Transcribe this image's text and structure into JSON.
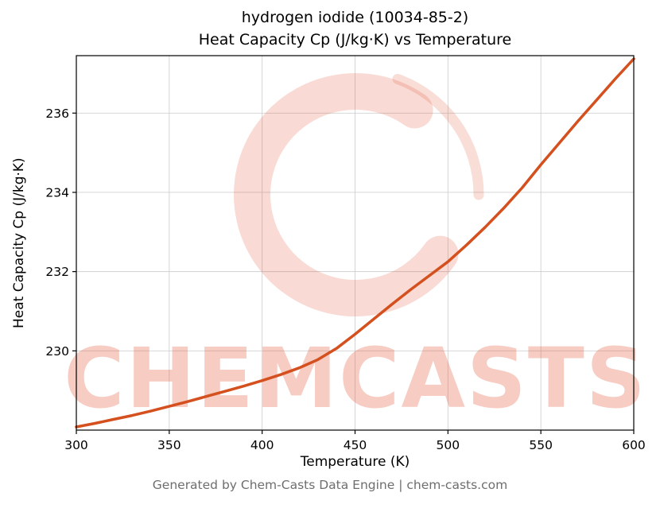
{
  "page": {
    "footer": "Generated by Chem-Casts Data Engine | chem-casts.com",
    "watermark_text": "CHEMCASTS"
  },
  "colors": {
    "line": "#d4501e",
    "watermark": "#e2583c",
    "grid": "#cccccc",
    "axis": "#000000",
    "footer_text": "#6e6e6e"
  },
  "chart_data": {
    "type": "line",
    "title_lines": [
      "hydrogen iodide (10034-85-2)",
      "Heat Capacity Cp (J/kg·K) vs Temperature"
    ],
    "xlabel": "Temperature (K)",
    "ylabel": "Heat Capacity Cp (J/kg·K)",
    "xlim": [
      300,
      600
    ],
    "ylim": [
      228.0,
      237.45
    ],
    "xticks": [
      300,
      350,
      400,
      450,
      500,
      550,
      600
    ],
    "yticks": [
      230,
      232,
      234,
      236
    ],
    "grid": true,
    "legend": "none",
    "line_color": "#d4501e",
    "line_width": 3.5,
    "series": [
      {
        "name": "Heat Capacity Cp",
        "x": [
          300,
          310,
          320,
          330,
          340,
          350,
          360,
          370,
          380,
          390,
          400,
          410,
          420,
          430,
          440,
          450,
          460,
          470,
          480,
          490,
          500,
          510,
          520,
          530,
          540,
          550,
          560,
          570,
          580,
          590,
          600
        ],
        "y": [
          228.08,
          228.17,
          228.27,
          228.37,
          228.48,
          228.6,
          228.72,
          228.85,
          228.98,
          229.11,
          229.25,
          229.4,
          229.57,
          229.78,
          230.06,
          230.42,
          230.8,
          231.18,
          231.55,
          231.9,
          232.25,
          232.67,
          233.12,
          233.6,
          234.12,
          234.7,
          235.25,
          235.8,
          236.33,
          236.86,
          237.37
        ]
      }
    ]
  }
}
